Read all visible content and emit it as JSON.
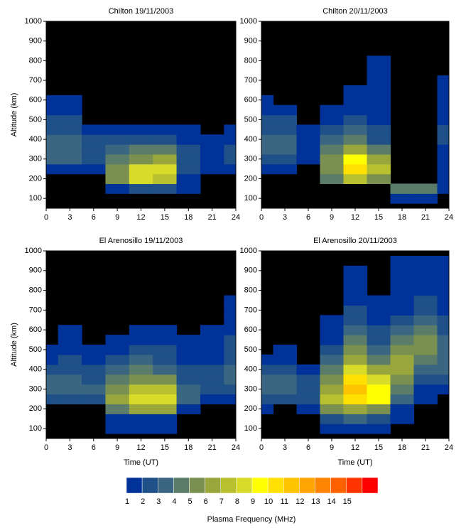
{
  "chart_data": [
    {
      "type": "contour",
      "title": "Chilton 19/11/2003",
      "ylabel": "Altitude (km)",
      "xlim": [
        0,
        24
      ],
      "ylim": [
        50,
        1000
      ],
      "xticks": [
        0,
        3,
        6,
        9,
        12,
        15,
        18,
        21,
        24
      ],
      "yticks": [
        100,
        200,
        300,
        400,
        500,
        600,
        700,
        800,
        900,
        1000
      ],
      "x": [
        0,
        3,
        6,
        9,
        12,
        15,
        18,
        21,
        24
      ],
      "y": [
        100,
        150,
        200,
        250,
        300,
        350,
        400,
        450,
        500,
        550,
        600,
        650,
        700,
        750,
        800,
        850,
        900,
        950,
        1000
      ],
      "z": [
        [
          0,
          0,
          0,
          0,
          0,
          0,
          0,
          0,
          0
        ],
        [
          0,
          0,
          0,
          1.5,
          2.5,
          2,
          1,
          0,
          0
        ],
        [
          0,
          0,
          0,
          5,
          8,
          7,
          1.5,
          0,
          0
        ],
        [
          1.5,
          1.5,
          1.2,
          5.5,
          8,
          8,
          2,
          1,
          1.5
        ],
        [
          3,
          3,
          2,
          4,
          5.5,
          6,
          2.5,
          1.5,
          2.5
        ],
        [
          3.5,
          3.5,
          2.5,
          3,
          4,
          4,
          2,
          1.5,
          2.5
        ],
        [
          3.5,
          3,
          2,
          2,
          2.5,
          2.5,
          1.5,
          1,
          1.5
        ],
        [
          2.5,
          2.5,
          1.2,
          1.2,
          1.5,
          1.5,
          1,
          0,
          1
        ],
        [
          2,
          2,
          0,
          0,
          0,
          0,
          0,
          0,
          0
        ],
        [
          1.5,
          1.5,
          0,
          0,
          0,
          0,
          0,
          0,
          0
        ],
        [
          1.2,
          1.2,
          0,
          0,
          0,
          0,
          0,
          0,
          0
        ],
        [
          0,
          0,
          0,
          0,
          0,
          0,
          0,
          0,
          0
        ],
        [
          0,
          0,
          0,
          0,
          0,
          0,
          0,
          0,
          0
        ],
        [
          0,
          0,
          0,
          0,
          0,
          0,
          0,
          0,
          0
        ],
        [
          0,
          0,
          0,
          0,
          0,
          0,
          0,
          0,
          0
        ],
        [
          0,
          0,
          0,
          0,
          0,
          0,
          0,
          0,
          0
        ],
        [
          0,
          0,
          0,
          0,
          0,
          0,
          0,
          0,
          0
        ],
        [
          0,
          0,
          0,
          0,
          0,
          0,
          0,
          0,
          0
        ],
        [
          0,
          0,
          0,
          0,
          0,
          0,
          0,
          0,
          0
        ]
      ]
    },
    {
      "type": "contour",
      "title": "Chilton 20/11/2003",
      "xlim": [
        0,
        24
      ],
      "ylim": [
        50,
        1000
      ],
      "xticks": [
        0,
        3,
        6,
        9,
        12,
        15,
        18,
        21,
        24
      ],
      "yticks": [
        100,
        200,
        300,
        400,
        500,
        600,
        700,
        800,
        900,
        1000
      ],
      "x": [
        0,
        3,
        6,
        9,
        12,
        15,
        18,
        21,
        24
      ],
      "y": [
        100,
        150,
        200,
        250,
        300,
        350,
        400,
        450,
        500,
        550,
        600,
        650,
        700,
        750,
        800,
        850,
        900,
        950,
        1000
      ],
      "z": [
        [
          0,
          0,
          0,
          0,
          0,
          0,
          1,
          1,
          0
        ],
        [
          0,
          0,
          0,
          0,
          0,
          0,
          4,
          4,
          1
        ],
        [
          0,
          0,
          0,
          4,
          7,
          5,
          0,
          0,
          1.2
        ],
        [
          1.5,
          1.5,
          0,
          5.5,
          10,
          7,
          0,
          0,
          1.5
        ],
        [
          2.5,
          2.5,
          1.5,
          5,
          9,
          6,
          0,
          0,
          1.5
        ],
        [
          3,
          3,
          1.5,
          4,
          6,
          4,
          0,
          0,
          1.5
        ],
        [
          3,
          3,
          1.2,
          3,
          4,
          2.5,
          0,
          0,
          2
        ],
        [
          2.5,
          2.5,
          1,
          2,
          3,
          2,
          0,
          0,
          2.5
        ],
        [
          2,
          2,
          0,
          1.5,
          2,
          1.5,
          0,
          0,
          1.5
        ],
        [
          1.5,
          1.2,
          0,
          1.2,
          1.5,
          1.2,
          0,
          0,
          1.2
        ],
        [
          1,
          0,
          0,
          0,
          1.2,
          1,
          0,
          0,
          1
        ],
        [
          0,
          0,
          0,
          0,
          1,
          1,
          0,
          0,
          1
        ],
        [
          0,
          0,
          0,
          0,
          0,
          1,
          0,
          0,
          1
        ],
        [
          0,
          0,
          0,
          0,
          0,
          1,
          0,
          0,
          0
        ],
        [
          0,
          0,
          0,
          0,
          0,
          1,
          0,
          0,
          0
        ],
        [
          0,
          0,
          0,
          0,
          0,
          0,
          0,
          0,
          0
        ],
        [
          0,
          0,
          0,
          0,
          0,
          0,
          0,
          0,
          0
        ],
        [
          0,
          0,
          0,
          0,
          0,
          0,
          0,
          0,
          0
        ],
        [
          0,
          0,
          0,
          0,
          0,
          0,
          0,
          0,
          0
        ]
      ]
    },
    {
      "type": "contour",
      "title": "El Arenosillo 19/11/2003",
      "ylabel": "Altitude (km)",
      "xlabel": "Time (UT)",
      "xlim": [
        0,
        24
      ],
      "ylim": [
        50,
        1000
      ],
      "xticks": [
        0,
        3,
        6,
        9,
        12,
        15,
        18,
        21,
        24
      ],
      "yticks": [
        100,
        200,
        300,
        400,
        500,
        600,
        700,
        800,
        900,
        1000
      ],
      "x": [
        0,
        3,
        6,
        9,
        12,
        15,
        18,
        21,
        24
      ],
      "y": [
        100,
        150,
        200,
        250,
        300,
        350,
        400,
        450,
        500,
        550,
        600,
        650,
        700,
        750,
        800,
        850,
        900,
        950,
        1000
      ],
      "z": [
        [
          0,
          0,
          0,
          1,
          1,
          1,
          0,
          0,
          0
        ],
        [
          0,
          0,
          0,
          1.5,
          1.5,
          1.5,
          0,
          0,
          0
        ],
        [
          0,
          0,
          0,
          4,
          6,
          6,
          1.5,
          0,
          0
        ],
        [
          2,
          2,
          2,
          6,
          8,
          8,
          3,
          1.5,
          1.5
        ],
        [
          3,
          3,
          3,
          5,
          7,
          7.5,
          3,
          2,
          2.5
        ],
        [
          3,
          3,
          2.5,
          4,
          5,
          5,
          2.5,
          2,
          3
        ],
        [
          2,
          2.5,
          2,
          3,
          4,
          3.5,
          2,
          2,
          3
        ],
        [
          1.5,
          2,
          1.5,
          2,
          3,
          2.5,
          1.5,
          1.5,
          2.5
        ],
        [
          1,
          1.5,
          1.2,
          1.5,
          2,
          2,
          1.2,
          1.2,
          2
        ],
        [
          0,
          1.2,
          0,
          1,
          1.5,
          1.5,
          1,
          1.2,
          2
        ],
        [
          0,
          1,
          0,
          0,
          1,
          1,
          0,
          1,
          1.5
        ],
        [
          0,
          0,
          0,
          0,
          0,
          0,
          0,
          0,
          1.2
        ],
        [
          0,
          0,
          0,
          0,
          0,
          0,
          0,
          0,
          1
        ],
        [
          0,
          0,
          0,
          0,
          0,
          0,
          0,
          0,
          1
        ],
        [
          0,
          0,
          0,
          0,
          0,
          0,
          0,
          0,
          0
        ],
        [
          0,
          0,
          0,
          0,
          0,
          0,
          0,
          0,
          0
        ],
        [
          0,
          0,
          0,
          0,
          0,
          0,
          0,
          0,
          0
        ],
        [
          0,
          0,
          0,
          0,
          0,
          0,
          0,
          0,
          0
        ],
        [
          0,
          0,
          0,
          0,
          0,
          0,
          0,
          0,
          0
        ]
      ]
    },
    {
      "type": "contour",
      "title": "El Arenosillo 20/11/2003",
      "xlabel": "Time (UT)",
      "xlim": [
        0,
        24
      ],
      "ylim": [
        50,
        1000
      ],
      "xticks": [
        0,
        3,
        6,
        9,
        12,
        15,
        18,
        21,
        24
      ],
      "yticks": [
        100,
        200,
        300,
        400,
        500,
        600,
        700,
        800,
        900,
        1000
      ],
      "x": [
        0,
        3,
        6,
        9,
        12,
        15,
        18,
        21,
        24
      ],
      "y": [
        100,
        150,
        200,
        250,
        300,
        350,
        400,
        450,
        500,
        550,
        600,
        650,
        700,
        750,
        800,
        850,
        900,
        950,
        1000
      ],
      "z": [
        [
          0,
          0,
          0,
          1.5,
          1.5,
          1.5,
          0,
          0,
          0
        ],
        [
          0,
          0,
          0,
          2.5,
          3,
          2.5,
          1,
          0,
          0
        ],
        [
          1.5,
          0,
          1.5,
          5,
          6,
          5,
          1.5,
          0,
          0
        ],
        [
          2.5,
          2,
          2.5,
          7,
          10,
          9,
          3,
          1.2,
          0
        ],
        [
          3,
          3,
          2.5,
          6,
          11,
          9,
          4,
          1.5,
          1.5
        ],
        [
          3,
          3,
          2,
          5,
          10,
          8,
          5,
          2,
          2
        ],
        [
          2,
          2,
          1.5,
          4,
          8,
          6,
          6,
          3,
          3
        ],
        [
          1.2,
          1.5,
          0,
          3,
          6,
          4.5,
          6,
          4,
          3.5
        ],
        [
          0,
          1.2,
          0,
          2,
          5,
          3.5,
          5,
          5,
          3.5
        ],
        [
          0,
          0,
          0,
          1.5,
          4,
          2.5,
          4,
          5,
          3
        ],
        [
          0,
          0,
          0,
          1.2,
          3,
          2,
          3,
          4,
          2.5
        ],
        [
          0,
          0,
          0,
          1,
          2.5,
          1.5,
          2,
          3,
          2
        ],
        [
          0,
          0,
          0,
          0,
          2,
          1.2,
          1.5,
          2.5,
          1.5
        ],
        [
          0,
          0,
          0,
          0,
          1.5,
          1,
          1.2,
          2,
          1.5
        ],
        [
          0,
          0,
          0,
          0,
          1.2,
          0,
          1,
          1.5,
          1.2
        ],
        [
          0,
          0,
          0,
          0,
          1,
          0,
          1,
          1.2,
          1
        ],
        [
          0,
          0,
          0,
          0,
          1,
          0,
          1,
          1,
          1
        ],
        [
          0,
          0,
          0,
          0,
          0,
          0,
          1,
          1,
          1
        ],
        [
          0,
          0,
          0,
          0,
          0,
          0,
          0,
          0,
          0
        ]
      ]
    }
  ],
  "colorbar": {
    "label": "Plasma Frequency (MHz)",
    "levels": [
      1,
      2,
      3,
      4,
      5,
      6,
      7,
      8,
      9,
      10,
      11,
      12,
      13,
      14,
      15
    ],
    "colors": [
      "#00329a",
      "#1f5088",
      "#3a6682",
      "#5a7c68",
      "#7a9050",
      "#98a63c",
      "#b8c030",
      "#d8dc28",
      "#ffff00",
      "#ffe000",
      "#ffc400",
      "#ffa400",
      "#ff8400",
      "#ff6000",
      "#ff3400",
      "#ff0000"
    ]
  }
}
